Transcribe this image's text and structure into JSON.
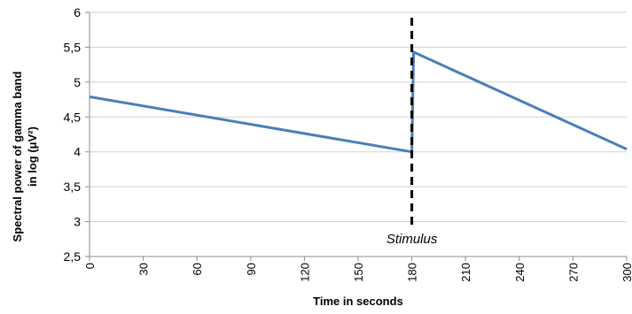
{
  "chart_data": {
    "type": "line",
    "title": "",
    "xlabel": "Time in seconds",
    "ylabel_line1": "Spectral power of gamma band",
    "ylabel_line2": "in log (μV²)",
    "xlim": [
      0,
      300
    ],
    "ylim": [
      2.5,
      6
    ],
    "x_ticks": [
      0,
      30,
      60,
      90,
      120,
      150,
      180,
      210,
      240,
      270,
      300
    ],
    "x_tick_labels": [
      "0",
      "30",
      "60",
      "90",
      "120",
      "150",
      "180",
      "210",
      "240",
      "270",
      "300"
    ],
    "y_ticks": [
      2.5,
      3,
      3.5,
      4,
      4.5,
      5,
      5.5,
      6
    ],
    "y_tick_labels": [
      "2,5",
      "3",
      "3,5",
      "4",
      "4,5",
      "5",
      "5,5",
      "6"
    ],
    "grid": "horizontal",
    "series": [
      {
        "color": "#4a7ebb",
        "points": [
          [
            0,
            4.79
          ],
          [
            180,
            4.0
          ],
          [
            181,
            5.43
          ],
          [
            300,
            4.04
          ]
        ]
      }
    ],
    "annotations": [
      {
        "type": "vertical-dashed-line",
        "x": 180,
        "label": "Stimulus",
        "color": "#000000"
      }
    ]
  }
}
